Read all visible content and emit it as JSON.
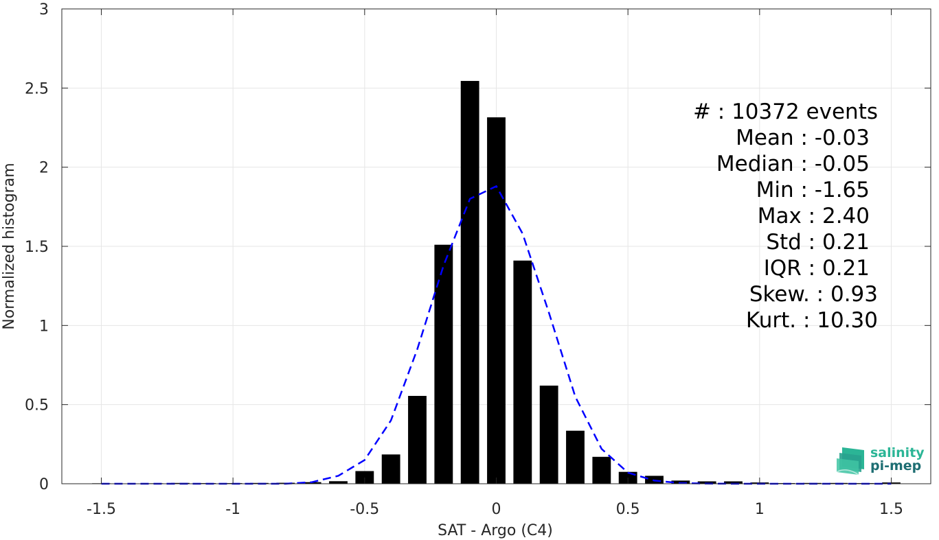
{
  "chart_data": {
    "type": "bar",
    "xlabel": "SAT - Argo (C4)",
    "ylabel": "Normalized histogram",
    "xlim": [
      -1.65,
      1.65
    ],
    "ylim": [
      0,
      3
    ],
    "grid": true,
    "x_ticks": [
      -1.5,
      -1,
      -0.5,
      0,
      0.5,
      1,
      1.5
    ],
    "x_tick_labels": [
      "-1.5",
      "-1",
      "-0.5",
      "0",
      "0.5",
      "1",
      "1.5"
    ],
    "y_ticks": [
      0,
      0.5,
      1,
      1.5,
      2,
      2.5,
      3
    ],
    "y_tick_labels": [
      "0",
      "0.5",
      "1",
      "1.5",
      "2",
      "2.5",
      "3"
    ],
    "bar_color": "#000000",
    "bars": {
      "x": [
        -1.5,
        -1.4,
        -1.3,
        -1.2,
        -1.1,
        -1.0,
        -0.9,
        -0.8,
        -0.7,
        -0.6,
        -0.5,
        -0.4,
        -0.3,
        -0.2,
        -0.1,
        0.0,
        0.1,
        0.2,
        0.3,
        0.4,
        0.5,
        0.6,
        0.7,
        0.8,
        0.9,
        1.0,
        1.1,
        1.2,
        1.3,
        1.4,
        1.5
      ],
      "values": [
        0.003,
        0.002,
        0.003,
        0.005,
        0.004,
        0.004,
        0.005,
        0.006,
        0.01,
        0.016,
        0.08,
        0.185,
        0.555,
        1.51,
        2.545,
        2.315,
        1.41,
        0.62,
        0.335,
        0.17,
        0.075,
        0.05,
        0.02,
        0.015,
        0.015,
        0.008,
        0.004,
        0.005,
        0.005,
        0.004,
        0.008
      ]
    },
    "fit_curve": {
      "style": "dashed",
      "color": "#0000ff",
      "x": [
        -1.5,
        -1.4,
        -1.3,
        -1.2,
        -1.1,
        -1.0,
        -0.9,
        -0.8,
        -0.7,
        -0.6,
        -0.5,
        -0.4,
        -0.3,
        -0.2,
        -0.1,
        0.0,
        0.1,
        0.2,
        0.3,
        0.4,
        0.5,
        0.6,
        0.7,
        0.8,
        0.9,
        1.0,
        1.1,
        1.2,
        1.3,
        1.4,
        1.5
      ],
      "y": [
        0.0,
        0.0,
        0.0,
        0.0,
        0.0,
        0.0,
        0.0,
        0.0,
        0.01,
        0.05,
        0.15,
        0.4,
        0.85,
        1.38,
        1.8,
        1.88,
        1.58,
        1.08,
        0.55,
        0.22,
        0.07,
        0.02,
        0.004,
        0.001,
        0.0,
        0.0,
        0.0,
        0.0,
        0.0,
        0.0,
        0.0
      ]
    }
  },
  "stats": {
    "count": "#  : 10372 events",
    "mean": "Mean : -0.03",
    "median": "Median : -0.05",
    "min": "Min : -1.65",
    "max": "Max : 2.40",
    "std": "Std : 0.21",
    "iqr": "IQR : 0.21",
    "skew": "Skew. : 0.93",
    "kurt": "Kurt. : 10.30"
  },
  "logo": {
    "line1": "salinity",
    "line2": "pi-mep",
    "color_top": "#2bb596",
    "color_bottom": "#1e6e73"
  }
}
